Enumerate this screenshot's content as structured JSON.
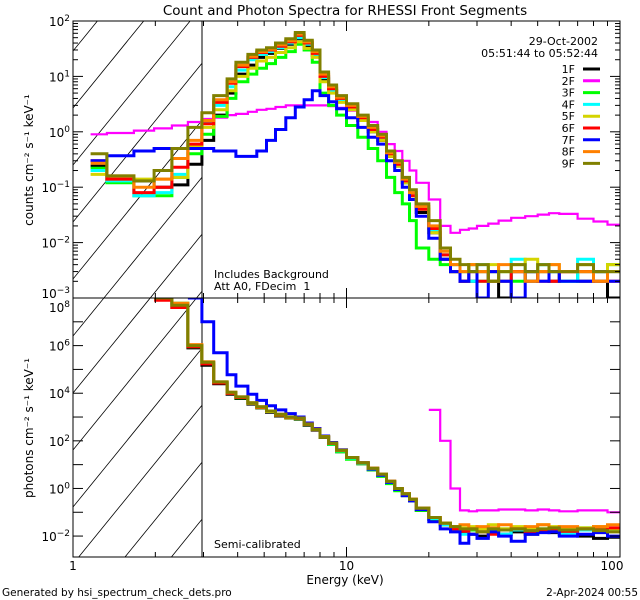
{
  "chart_data": [
    {
      "type": "line",
      "panel": "top",
      "title": "Count and Photon Spectra for RHESSI Front Segments",
      "ylabel": "counts cm⁻² s⁻¹ keV⁻¹",
      "xlabel": "",
      "xscale": "log",
      "yscale": "log",
      "xlim": [
        1,
        100
      ],
      "ylim": [
        0.001,
        100
      ],
      "ytick_exponents": [
        "2",
        "1",
        "0",
        "−1",
        "−2",
        "−3"
      ],
      "ytick_values": [
        100,
        10,
        1,
        0.1,
        0.01,
        0.001
      ],
      "annotations": [
        "Includes Background",
        "Att A0, FDecim  1"
      ],
      "date": "29-Oct-2002",
      "time_range": "05:51:44 to 05:52:44",
      "legend_position": "top-right",
      "energy_bin_edges": [
        1.16,
        1.33,
        1.67,
        1.98,
        2.3,
        2.63,
        2.96,
        3.27,
        3.66,
        3.94,
        4.36,
        4.7,
        5.1,
        5.5,
        6.0,
        6.5,
        7.0,
        7.5,
        8.0,
        8.6,
        9.2,
        10,
        11,
        12,
        13,
        14,
        15,
        16,
        17,
        18,
        20,
        22,
        24,
        26,
        28,
        30,
        33,
        36,
        40,
        45,
        50,
        55,
        60,
        70,
        80,
        90,
        100
      ],
      "series": [
        {
          "name": "1F",
          "color": "#000000",
          "values": [
            0.24,
            0.13,
            0.13,
            0.1,
            0.11,
            0.26,
            0.7,
            2,
            5,
            11,
            16,
            22,
            26,
            32,
            38,
            48,
            35,
            24,
            9,
            5.5,
            3.6,
            2.5,
            1.6,
            1,
            0.7,
            0.36,
            0.24,
            0.12,
            0.06,
            0.035,
            0.015,
            0.005,
            0.003,
            0.002,
            0.002,
            0.003,
            0.002,
            0.001,
            0.003,
            0.002,
            0.003,
            0.002,
            0.003,
            0.002,
            0.002,
            0.001
          ]
        },
        {
          "name": "2F",
          "color": "#ff00ff",
          "values": [
            0.9,
            0.95,
            1.05,
            1.15,
            1.3,
            1.5,
            1.7,
            1.8,
            2,
            2.1,
            2.3,
            2.5,
            2.6,
            2.8,
            3,
            3,
            3,
            3,
            3,
            2.9,
            2.7,
            2.4,
            2,
            1.5,
            1,
            0.6,
            0.45,
            0.3,
            0.2,
            0.12,
            0.06,
            0.02,
            0.015,
            0.017,
            0.018,
            0.02,
            0.022,
            0.025,
            0.028,
            0.03,
            0.032,
            0.034,
            0.033,
            0.027,
            0.024,
            0.021
          ]
        },
        {
          "name": "3F",
          "color": "#00ff00",
          "values": [
            0.22,
            0.12,
            0.07,
            0.07,
            0.15,
            0.4,
            0.9,
            1.9,
            4,
            8,
            11,
            14,
            17,
            22,
            28,
            38,
            30,
            18,
            5,
            3,
            2,
            1.3,
            0.8,
            0.5,
            0.3,
            0.15,
            0.08,
            0.05,
            0.025,
            0.008,
            0.005,
            0.004,
            0.003,
            0.003,
            0.004,
            0.002,
            0.003,
            0.003,
            0.002,
            0.003,
            0.004,
            0.003,
            0.002,
            0.003,
            0.003,
            0.004
          ]
        },
        {
          "name": "4F",
          "color": "#00ffff",
          "values": [
            0.2,
            0.13,
            0.07,
            0.08,
            0.17,
            0.5,
            1.5,
            3,
            6.5,
            13,
            20,
            25,
            28,
            33,
            40,
            50,
            38,
            25,
            9.5,
            5.5,
            3.8,
            2.7,
            1.7,
            1.1,
            0.75,
            0.38,
            0.25,
            0.12,
            0.07,
            0.04,
            0.017,
            0.006,
            0.004,
            0.003,
            0.002,
            0.004,
            0.003,
            0.002,
            0.005,
            0.003,
            0.004,
            0.003,
            0.002,
            0.005,
            0.002,
            0.003
          ]
        },
        {
          "name": "5F",
          "color": "#d4d400",
          "values": [
            0.17,
            0.14,
            0.14,
            0.14,
            0.15,
            0.55,
            1.2,
            2.5,
            5.5,
            10,
            14,
            19,
            22,
            27,
            33,
            42,
            32,
            22,
            8,
            5,
            3.4,
            2.5,
            1.6,
            1,
            0.7,
            0.36,
            0.24,
            0.12,
            0.07,
            0.04,
            0.015,
            0.006,
            0.004,
            0.003,
            0.004,
            0.003,
            0.004,
            0.003,
            0.004,
            0.005,
            0.003,
            0.004,
            0.003,
            0.004,
            0.003,
            0.004
          ]
        },
        {
          "name": "6F",
          "color": "#ff0000",
          "values": [
            0.3,
            0.14,
            0.08,
            0.1,
            0.23,
            0.6,
            1.4,
            3.4,
            7.5,
            15,
            22,
            27,
            30,
            35,
            42,
            55,
            40,
            26,
            10,
            6,
            4,
            2.8,
            1.8,
            1.1,
            0.8,
            0.4,
            0.26,
            0.13,
            0.07,
            0.04,
            0.018,
            0.006,
            0.003,
            0.002,
            0.003,
            0.002,
            0.003,
            0.002,
            0.003,
            0.003,
            0.002,
            0.002,
            0.003,
            0.003,
            0.002,
            0.002
          ]
        },
        {
          "name": "7F",
          "color": "#0000ff",
          "values": [
            0.3,
            0.37,
            0.45,
            0.5,
            0.5,
            0.5,
            0.5,
            0.45,
            0.45,
            0.36,
            0.36,
            0.45,
            0.7,
            1.1,
            1.8,
            2.8,
            3.8,
            5.5,
            4.5,
            3.5,
            2.6,
            1.8,
            1.2,
            0.8,
            0.6,
            0.3,
            0.2,
            0.1,
            0.06,
            0.03,
            0.012,
            0.005,
            0.003,
            0.002,
            0.003,
            0.001,
            0.003,
            0.002,
            0.001,
            0.003,
            0.002,
            0.003,
            0.002,
            0.002,
            0.003,
            0.002
          ]
        },
        {
          "name": "8F",
          "color": "#ff8000",
          "values": [
            0.27,
            0.16,
            0.1,
            0.14,
            0.33,
            0.7,
            1.6,
            3.8,
            8,
            16,
            23,
            28,
            31,
            37,
            44,
            58,
            42,
            28,
            11,
            6.5,
            4.2,
            3,
            1.9,
            1.2,
            0.85,
            0.42,
            0.28,
            0.14,
            0.08,
            0.045,
            0.02,
            0.007,
            0.004,
            0.003,
            0.004,
            0.003,
            0.002,
            0.004,
            0.003,
            0.002,
            0.003,
            0.004,
            0.003,
            0.003,
            0.002,
            0.003
          ]
        },
        {
          "name": "9F",
          "color": "#808000",
          "values": [
            0.4,
            0.16,
            0.13,
            0.2,
            0.5,
            1.2,
            2.2,
            4.5,
            9,
            18,
            25,
            30,
            33,
            40,
            48,
            62,
            45,
            30,
            12,
            7,
            4.5,
            3.2,
            2,
            1.3,
            0.9,
            0.45,
            0.3,
            0.15,
            0.09,
            0.05,
            0.025,
            0.008,
            0.005,
            0.004,
            0.003,
            0.004,
            0.002,
            0.003,
            0.004,
            0.003,
            0.004,
            0.003,
            0.003,
            0.004,
            0.003,
            0.003
          ]
        }
      ]
    },
    {
      "type": "line",
      "panel": "bottom",
      "ylabel": "photons cm⁻² s⁻¹ keV⁻¹",
      "xlabel": "Energy (keV)",
      "xscale": "log",
      "yscale": "log",
      "xlim": [
        1,
        100
      ],
      "ylim": [
        0.00132,
        100000000
      ],
      "xtick_labels": [
        "1",
        "10",
        "100"
      ],
      "xtick_values": [
        1,
        10,
        100
      ],
      "ytick_exponents": [
        "8",
        "6",
        "4",
        "2",
        "0",
        "−2"
      ],
      "ytick_values": [
        100000000,
        1000000,
        10000,
        100,
        1,
        0.01
      ],
      "annotations": [
        "Semi-calibrated"
      ],
      "energy_bin_edges": [
        1.16,
        1.33,
        1.67,
        1.98,
        2.3,
        2.63,
        2.96,
        3.27,
        3.66,
        3.94,
        4.36,
        4.7,
        5.1,
        5.5,
        6.0,
        6.5,
        7.0,
        7.5,
        8.0,
        8.6,
        9.2,
        10,
        11,
        12,
        13,
        14,
        15,
        16,
        17,
        18,
        20,
        22,
        24,
        26,
        28,
        30,
        33,
        36,
        40,
        45,
        50,
        55,
        60,
        70,
        80,
        90,
        100
      ],
      "series": [
        {
          "name": "1F",
          "color": "#000000",
          "values": [
            null,
            null,
            null,
            100000000.0,
            40000000.0,
            800000.0,
            150000.0,
            25000.0,
            9000.0,
            6000.0,
            3500.0,
            2400.0,
            1600.0,
            1100.0,
            900,
            800,
            450,
            280,
            140,
            70,
            35,
            18,
            11,
            6,
            3.5,
            1.8,
            0.9,
            0.5,
            0.3,
            0.12,
            0.05,
            0.03,
            0.02,
            0.015,
            0.012,
            0.01,
            0.02,
            0.012,
            0.015,
            0.012,
            0.016,
            0.014,
            0.012,
            0.01,
            0.008,
            0.009
          ]
        },
        {
          "name": "2F",
          "color": "#ff00ff",
          "values": [
            null,
            null,
            null,
            null,
            null,
            null,
            null,
            null,
            null,
            null,
            null,
            null,
            null,
            null,
            null,
            null,
            null,
            null,
            null,
            null,
            null,
            null,
            null,
            null,
            null,
            null,
            null,
            null,
            null,
            null,
            2000,
            100,
            1,
            0.12,
            0.11,
            0.12,
            0.12,
            0.13,
            0.13,
            0.12,
            0.13,
            0.12,
            0.11,
            0.12,
            0.12,
            0.1
          ]
        },
        {
          "name": "3F",
          "color": "#00ff00",
          "values": [
            null,
            null,
            null,
            100000000.0,
            60000000.0,
            900000.0,
            180000.0,
            28000.0,
            10000.0,
            6500.0,
            3800.0,
            2500.0,
            1700.0,
            1200.0,
            950,
            850,
            480,
            290,
            140,
            70,
            35,
            17,
            11,
            6,
            3.2,
            1.6,
            0.8,
            0.5,
            0.3,
            0.12,
            0.05,
            0.03,
            0.025,
            0.02,
            0.018,
            0.02,
            0.018,
            0.02,
            0.02,
            0.016,
            0.02,
            0.018,
            0.02,
            0.022,
            0.02,
            0.018
          ]
        },
        {
          "name": "4F",
          "color": "#00ffff",
          "values": [
            null,
            null,
            null,
            100000000.0,
            50000000.0,
            1000000.0,
            190000.0,
            29000.0,
            10500.0,
            6800.0,
            3900.0,
            2600.0,
            1750.0,
            1250.0,
            960,
            880,
            490,
            295,
            145,
            75,
            38,
            19,
            11.5,
            6.5,
            3.6,
            1.8,
            0.9,
            0.55,
            0.32,
            0.14,
            0.055,
            0.03,
            0.02,
            0.012,
            0.02,
            0.015,
            0.02,
            0.012,
            0.018,
            0.02,
            0.015,
            0.02,
            0.012,
            0.018,
            0.015,
            0.02
          ]
        },
        {
          "name": "5F",
          "color": "#d4d400",
          "values": [
            null,
            null,
            null,
            100000000.0,
            50000000.0,
            1000000.0,
            200000.0,
            29000.0,
            10000.0,
            6600.0,
            3800.0,
            2500.0,
            1700.0,
            1200.0,
            920,
            860,
            500,
            300,
            150,
            78,
            40,
            20,
            12,
            7,
            3.8,
            1.9,
            1,
            0.6,
            0.35,
            0.15,
            0.06,
            0.035,
            0.025,
            0.022,
            0.025,
            0.02,
            0.03,
            0.02,
            0.025,
            0.022,
            0.03,
            0.025,
            0.02,
            0.022,
            0.025,
            0.02
          ]
        },
        {
          "name": "6F",
          "color": "#ff0000",
          "values": [
            null,
            null,
            null,
            80000000.0,
            40000000.0,
            900000.0,
            170000.0,
            27000.0,
            10000.0,
            6600.0,
            3900.0,
            2600.0,
            1800.0,
            1250.0,
            980,
            880,
            490,
            295,
            145,
            78,
            40,
            20,
            12,
            7,
            3.8,
            2,
            1,
            0.6,
            0.35,
            0.15,
            0.06,
            0.035,
            0.02,
            0.016,
            0.02,
            0.015,
            0.012,
            0.018,
            0.02,
            0.014,
            0.018,
            0.02,
            0.016,
            0.02,
            0.018,
            0.022
          ]
        },
        {
          "name": "7F",
          "color": "#0000ff",
          "values": [
            null,
            null,
            null,
            null,
            null,
            100000000.0,
            10000000.0,
            500000.0,
            60000.0,
            20000.0,
            9000.0,
            5000.0,
            3000.0,
            2000.0,
            1400.0,
            1000.0,
            560,
            330,
            160,
            85,
            42,
            20,
            12,
            6.5,
            3.6,
            1.8,
            0.9,
            0.5,
            0.3,
            0.13,
            0.04,
            0.02,
            0.015,
            0.005,
            0.012,
            0.008,
            0.015,
            0.01,
            0.006,
            0.012,
            0.014,
            0.015,
            0.01,
            0.012,
            0.014,
            0.01
          ]
        },
        {
          "name": "8F",
          "color": "#ff8000",
          "values": [
            null,
            null,
            null,
            100000000.0,
            60000000.0,
            1100000.0,
            210000.0,
            30000.0,
            11000.0,
            7000.0,
            4000.0,
            2700.0,
            1800.0,
            1300.0,
            1000.0,
            900,
            510,
            305,
            152,
            80,
            40,
            20,
            12,
            7,
            4,
            2,
            1,
            0.6,
            0.35,
            0.15,
            0.06,
            0.035,
            0.025,
            0.03,
            0.02,
            0.025,
            0.022,
            0.03,
            0.02,
            0.025,
            0.03,
            0.022,
            0.025,
            0.02,
            0.025,
            0.03
          ]
        },
        {
          "name": "9F",
          "color": "#808000",
          "values": [
            null,
            null,
            null,
            100000000.0,
            50000000.0,
            1000000.0,
            200000.0,
            30000.0,
            11000.0,
            7000.0,
            4000.0,
            2700.0,
            1800.0,
            1300.0,
            1000.0,
            900,
            500,
            300,
            150,
            80,
            40,
            20,
            12,
            7,
            4,
            2,
            1,
            0.6,
            0.35,
            0.15,
            0.06,
            0.035,
            0.025,
            0.02,
            0.02,
            0.015,
            0.02,
            0.018,
            0.02,
            0.017,
            0.02,
            0.022,
            0.018,
            0.02,
            0.017,
            0.015
          ]
        }
      ]
    }
  ],
  "footer": {
    "generated_by": "Generated by hsi_spectrum_check_dets.pro",
    "timestamp": "2-Apr-2024 00:55"
  }
}
